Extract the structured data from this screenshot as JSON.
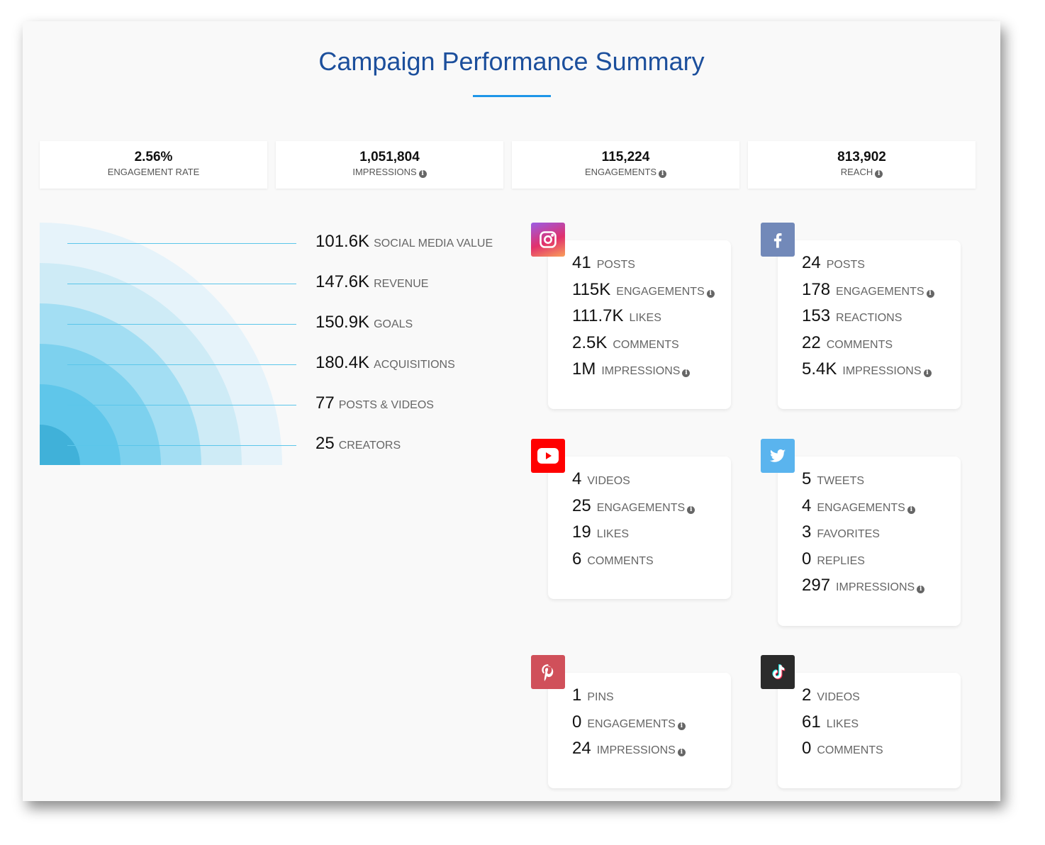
{
  "title": "Campaign Performance Summary",
  "stats": [
    {
      "value": "2.56%",
      "label": "ENGAGEMENT RATE",
      "info": false
    },
    {
      "value": "1,051,804",
      "label": "IMPRESSIONS",
      "info": true
    },
    {
      "value": "115,224",
      "label": "ENGAGEMENTS",
      "info": true
    },
    {
      "value": "813,902",
      "label": "REACH",
      "info": true
    }
  ],
  "metrics": [
    {
      "value": "101.6K",
      "label": "SOCIAL MEDIA VALUE"
    },
    {
      "value": "147.6K",
      "label": "REVENUE"
    },
    {
      "value": "150.9K",
      "label": "GOALS"
    },
    {
      "value": "180.4K",
      "label": "ACQUISITIONS"
    },
    {
      "value": "77",
      "label": "POSTS & VIDEOS"
    },
    {
      "value": "25",
      "label": "CREATORS"
    }
  ],
  "arc_colors": [
    "#e6f3fa",
    "#ceebf6",
    "#a3def3",
    "#7dd1ee",
    "#5fc6ea",
    "#40b1d9"
  ],
  "platforms": [
    {
      "name": "instagram",
      "icon": "instagram-icon",
      "color": "#e1306c",
      "rows": [
        {
          "value": "41",
          "label": "POSTS"
        },
        {
          "value": "115K",
          "label": "ENGAGEMENTS",
          "info": true
        },
        {
          "value": "111.7K",
          "label": "LIKES"
        },
        {
          "value": "2.5K",
          "label": "COMMENTS"
        },
        {
          "value": "1M",
          "label": "IMPRESSIONS",
          "info": true
        }
      ]
    },
    {
      "name": "facebook",
      "icon": "facebook-icon",
      "color": "#7289b9",
      "rows": [
        {
          "value": "24",
          "label": "POSTS"
        },
        {
          "value": "178",
          "label": "ENGAGEMENTS",
          "info": true
        },
        {
          "value": "153",
          "label": "REACTIONS"
        },
        {
          "value": "22",
          "label": "COMMENTS"
        },
        {
          "value": "5.4K",
          "label": "IMPRESSIONS",
          "info": true
        }
      ]
    },
    {
      "name": "youtube",
      "icon": "youtube-icon",
      "color": "#ff0000",
      "rows": [
        {
          "value": "4",
          "label": "VIDEOS"
        },
        {
          "value": "25",
          "label": "ENGAGEMENTS",
          "info": true
        },
        {
          "value": "19",
          "label": "LIKES"
        },
        {
          "value": "6",
          "label": "COMMENTS"
        }
      ]
    },
    {
      "name": "twitter",
      "icon": "twitter-icon",
      "color": "#5ab4ee",
      "rows": [
        {
          "value": "5",
          "label": "TWEETS"
        },
        {
          "value": "4",
          "label": "ENGAGEMENTS",
          "info": true
        },
        {
          "value": "3",
          "label": "FAVORITES"
        },
        {
          "value": "0",
          "label": "REPLIES"
        },
        {
          "value": "297",
          "label": "IMPRESSIONS",
          "info": true
        }
      ]
    },
    {
      "name": "pinterest",
      "icon": "pinterest-icon",
      "color": "#d0505a",
      "rows": [
        {
          "value": "1",
          "label": "PINS"
        },
        {
          "value": "0",
          "label": "ENGAGEMENTS",
          "info": true
        },
        {
          "value": "24",
          "label": "IMPRESSIONS",
          "info": true
        }
      ]
    },
    {
      "name": "tiktok",
      "icon": "tiktok-icon",
      "color": "#2b2b2b",
      "rows": [
        {
          "value": "2",
          "label": "VIDEOS"
        },
        {
          "value": "61",
          "label": "LIKES"
        },
        {
          "value": "0",
          "label": "COMMENTS"
        }
      ]
    }
  ]
}
